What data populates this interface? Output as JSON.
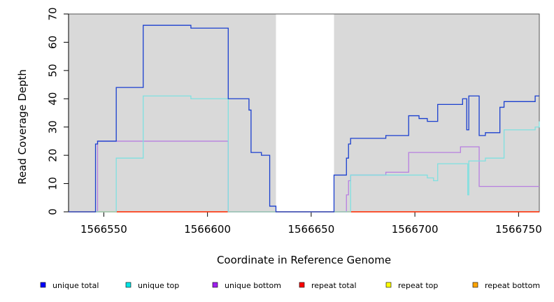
{
  "chart_data": {
    "type": "line",
    "title": "",
    "xlabel": "Coordinate in Reference Genome",
    "ylabel": "Read Coverage Depth",
    "xlim": [
      1566533,
      1566760
    ],
    "ylim": [
      0,
      70
    ],
    "xticks": [
      1566550,
      1566600,
      1566650,
      1566700,
      1566750
    ],
    "yticks": [
      0,
      10,
      20,
      30,
      40,
      50,
      60,
      70
    ],
    "grid": false,
    "plot_background": "#d9d9d9",
    "legend": {
      "placement": "bottom"
    },
    "highlight_region": {
      "x": [
        1566633,
        1566661
      ],
      "color": "#ffffff"
    },
    "series": [
      {
        "name": "unique total",
        "color": "#0000ff",
        "line_color": "#1a3fcf",
        "x": [
          1566533,
          1566546,
          1566547,
          1566548,
          1566556,
          1566569,
          1566592,
          1566610,
          1566620,
          1566621,
          1566626,
          1566630,
          1566633,
          1566661,
          1566667,
          1566668,
          1566669,
          1566686,
          1566697,
          1566702,
          1566706,
          1566711,
          1566723,
          1566725,
          1566725.5,
          1566726,
          1566730,
          1566731,
          1566734,
          1566741,
          1566743,
          1566758,
          1566760
        ],
        "y": [
          0,
          24,
          25,
          25,
          44,
          66,
          65,
          40,
          36,
          21,
          20,
          2,
          0,
          13,
          19,
          24,
          26,
          27,
          34,
          33,
          32,
          38,
          40,
          29,
          29,
          41,
          41,
          27,
          28,
          37,
          39,
          41,
          41
        ]
      },
      {
        "name": "unique top",
        "color": "#00e5e5",
        "line_color": "#7fe0e0",
        "x": [
          1566533,
          1566546,
          1566556,
          1566569,
          1566592,
          1566610,
          1566661,
          1566668,
          1566669,
          1566686,
          1566697,
          1566706,
          1566709,
          1566711,
          1566725,
          1566725.5,
          1566726,
          1566731,
          1566734,
          1566741,
          1566743,
          1566758,
          1566760
        ],
        "y": [
          0,
          0,
          19,
          41,
          40,
          0,
          0,
          0,
          13,
          13,
          13,
          12,
          11,
          17,
          17,
          6,
          18,
          18,
          19,
          19,
          29,
          30,
          32
        ]
      },
      {
        "name": "unique bottom",
        "color": "#a020f0",
        "line_color": "#b87fe0",
        "x": [
          1566533,
          1566546,
          1566547,
          1566610,
          1566661,
          1566667,
          1566668,
          1566669,
          1566686,
          1566697,
          1566722,
          1566731,
          1566760
        ],
        "y": [
          0,
          0,
          25,
          0,
          0,
          6,
          11,
          13,
          14,
          21,
          23,
          9,
          9
        ]
      },
      {
        "name": "repeat total",
        "color": "#ff0000",
        "line_color": "#ff0000",
        "x": [
          1566533,
          1566760
        ],
        "y": [
          0,
          0
        ]
      },
      {
        "name": "repeat top",
        "color": "#ffff00",
        "line_color": "#ffff00",
        "x": [
          1566533,
          1566760
        ],
        "y": [
          0,
          0
        ]
      },
      {
        "name": "repeat bottom",
        "color": "#ffa500",
        "line_color": "#ff9f1a",
        "x": [
          1566533,
          1566760
        ],
        "y": [
          0,
          0
        ]
      }
    ]
  }
}
